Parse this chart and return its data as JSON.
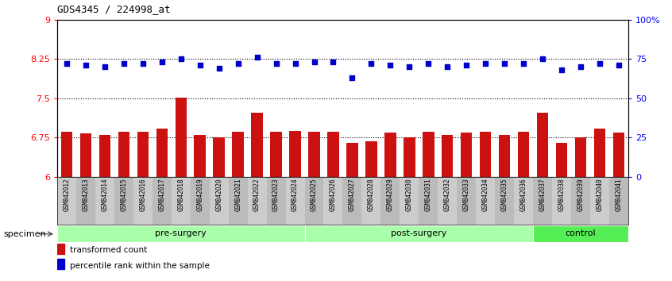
{
  "title": "GDS4345 / 224998_at",
  "categories": [
    "GSM842012",
    "GSM842013",
    "GSM842014",
    "GSM842015",
    "GSM842016",
    "GSM842017",
    "GSM842018",
    "GSM842019",
    "GSM842020",
    "GSM842021",
    "GSM842022",
    "GSM842023",
    "GSM842024",
    "GSM842025",
    "GSM842026",
    "GSM842027",
    "GSM842028",
    "GSM842029",
    "GSM842030",
    "GSM842031",
    "GSM842032",
    "GSM842033",
    "GSM842034",
    "GSM842035",
    "GSM842036",
    "GSM842037",
    "GSM842038",
    "GSM842039",
    "GSM842040",
    "GSM842041"
  ],
  "bar_values": [
    6.87,
    6.83,
    6.8,
    6.87,
    6.87,
    6.92,
    7.52,
    6.8,
    6.75,
    6.87,
    7.22,
    6.87,
    6.88,
    6.87,
    6.87,
    6.65,
    6.68,
    6.85,
    6.75,
    6.87,
    6.8,
    6.85,
    6.87,
    6.8,
    6.87,
    7.22,
    6.65,
    6.75,
    6.92,
    6.85
  ],
  "percentile_values": [
    72,
    71,
    70,
    72,
    72,
    73,
    75,
    71,
    69,
    72,
    76,
    72,
    72,
    73,
    73,
    63,
    72,
    71,
    70,
    72,
    70,
    71,
    72,
    72,
    72,
    75,
    68,
    70,
    72,
    71
  ],
  "bar_color": "#cc1111",
  "dot_color": "#0000cc",
  "ylim_left": [
    6,
    9
  ],
  "ylim_right": [
    0,
    100
  ],
  "yticks_left": [
    6,
    6.75,
    7.5,
    8.25,
    9
  ],
  "ytick_labels_left": [
    "6",
    "6.75",
    "7.5",
    "8.25",
    "9"
  ],
  "yticks_right": [
    0,
    25,
    50,
    75,
    100
  ],
  "ytick_labels_right": [
    "0",
    "25",
    "50",
    "75",
    "100%"
  ],
  "hlines": [
    6.75,
    7.5,
    8.25
  ],
  "groups": [
    {
      "label": "pre-surgery",
      "start": 0,
      "end": 13,
      "color": "#aaffaa"
    },
    {
      "label": "post-surgery",
      "start": 13,
      "end": 25,
      "color": "#aaffaa"
    },
    {
      "label": "control",
      "start": 25,
      "end": 30,
      "color": "#55ee55"
    }
  ],
  "legend_items": [
    {
      "label": "transformed count",
      "color": "#cc1111"
    },
    {
      "label": "percentile rank within the sample",
      "color": "#0000cc"
    }
  ],
  "specimen_label": "specimen",
  "bar_width": 0.6,
  "background_color": "#ffffff",
  "xtick_bg": "#cccccc"
}
